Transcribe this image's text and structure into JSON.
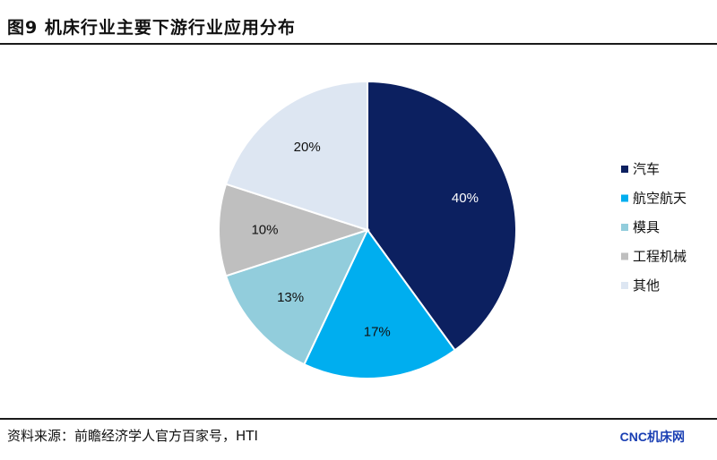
{
  "title": "图9   机床行业主要下游行业应用分布",
  "source": "资料来源：前瞻经济学人官方百家号，HTI",
  "watermark": "CNC机床网",
  "chart_data": {
    "type": "pie",
    "title": "",
    "categories": [
      "汽车",
      "航空航天",
      "模具",
      "工程机械",
      "其他"
    ],
    "values": [
      40,
      17,
      13,
      10,
      20
    ],
    "value_labels": [
      "40%",
      "17%",
      "13%",
      "10%",
      "20%"
    ],
    "colors": [
      "#0c2060",
      "#00aeef",
      "#92cddc",
      "#bfbfbf",
      "#dde6f2"
    ],
    "label_colors": [
      "#ffffff",
      "#111111",
      "#111111",
      "#111111",
      "#111111"
    ],
    "legend_position": "right",
    "start_angle_deg": 0,
    "direction": "clockwise"
  }
}
